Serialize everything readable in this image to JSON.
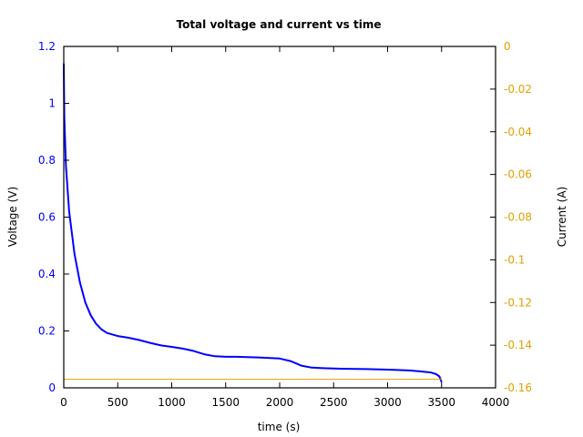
{
  "chart_data": {
    "type": "line",
    "title": "Total voltage and current vs time",
    "xlabel": "time (s)",
    "ylabel": "Voltage (V)",
    "y2label": "Current (A)",
    "xlim": [
      0,
      4000
    ],
    "ylim": [
      0,
      1.2
    ],
    "y2lim": [
      -0.16,
      0
    ],
    "x_ticks": [
      "0",
      "500",
      "1000",
      "1500",
      "2000",
      "2500",
      "3000",
      "3500",
      "4000"
    ],
    "y_ticks": [
      "0",
      "0.2",
      "0.4",
      "0.6",
      "0.8",
      "1",
      "1.2"
    ],
    "y2_ticks": [
      "-0.16",
      "-0.14",
      "-0.12",
      "-0.1",
      "-0.08",
      "-0.06",
      "-0.04",
      "-0.02",
      "0"
    ],
    "grid": false,
    "series": [
      {
        "name": "Voltage",
        "axis": "left",
        "color": "#0000ff",
        "x": [
          0,
          5,
          20,
          50,
          100,
          150,
          200,
          250,
          300,
          350,
          400,
          500,
          600,
          700,
          800,
          900,
          1000,
          1100,
          1200,
          1300,
          1400,
          1500,
          1600,
          1800,
          2000,
          2100,
          2200,
          2300,
          2400,
          2600,
          2800,
          3000,
          3200,
          3300,
          3400,
          3450,
          3480,
          3500
        ],
        "values": [
          1.14,
          0.95,
          0.78,
          0.62,
          0.47,
          0.37,
          0.3,
          0.255,
          0.225,
          0.205,
          0.193,
          0.182,
          0.176,
          0.168,
          0.158,
          0.149,
          0.144,
          0.138,
          0.13,
          0.118,
          0.111,
          0.109,
          0.109,
          0.107,
          0.103,
          0.094,
          0.078,
          0.071,
          0.069,
          0.067,
          0.066,
          0.064,
          0.061,
          0.058,
          0.054,
          0.048,
          0.04,
          0.02
        ]
      },
      {
        "name": "Current",
        "axis": "right",
        "color": "#e0a000",
        "x": [
          0,
          3500
        ],
        "values": [
          -0.156,
          -0.156
        ]
      }
    ]
  },
  "colors": {
    "voltage": "#0000ff",
    "current": "#e0a000",
    "axis": "#000000"
  }
}
